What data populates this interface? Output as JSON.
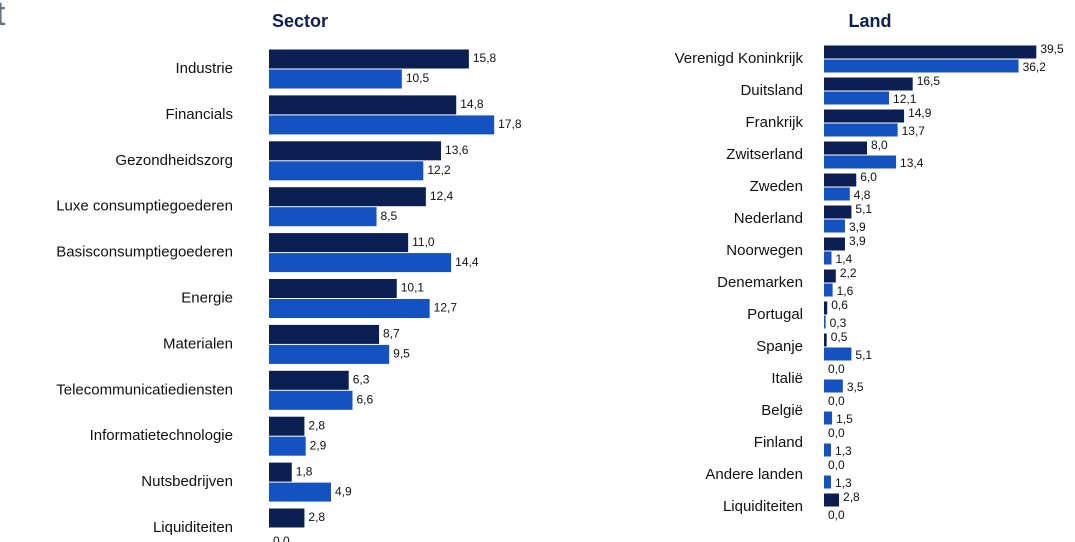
{
  "header": "t",
  "chart_data": [
    {
      "type": "bar",
      "orientation": "horizontal",
      "title": "Sector",
      "categories": [
        "Industrie",
        "Financials",
        "Gezondheidszorg",
        "Luxe consumptiegoederen",
        "Basisconsumptiegoederen",
        "Energie",
        "Materialen",
        "Telecommunicatiediensten",
        "Informatietechnologie",
        "Nutsbedrijven",
        "Liquiditeiten"
      ],
      "series": [
        {
          "color": "#0b1f52",
          "values": [
            15.8,
            14.8,
            13.6,
            12.4,
            11,
            10.1,
            8.7,
            6.3,
            2.8,
            1.8,
            2.8
          ],
          "value_labels": [
            "15,8",
            "14,8",
            "13,6",
            "12,4",
            "11,0",
            "10,1",
            "8,7",
            "6,3",
            "2,8",
            "1,8",
            "2,8"
          ]
        },
        {
          "color": "#1452c2",
          "values": [
            10.5,
            17.8,
            12.2,
            8.5,
            14.4,
            12.7,
            9.5,
            6.6,
            2.9,
            4.9,
            0
          ],
          "value_labels": [
            "10,5",
            "17,8",
            "12,2",
            "8,5",
            "14,4",
            "12,7",
            "9,5",
            "6,6",
            "2,9",
            "4,9",
            "0,0"
          ]
        }
      ],
      "xlim": [
        0,
        20
      ]
    },
    {
      "type": "bar",
      "orientation": "horizontal",
      "title": "Land",
      "categories": [
        "Verenigd Koninkrijk",
        "Duitsland",
        "Frankrijk",
        "Zwitserland",
        "Zweden",
        "Nederland",
        "Noorwegen",
        "Denemarken",
        "Portugal",
        "Spanje",
        "Italië",
        "België",
        "Finland",
        "Andere landen",
        "Liquiditeiten"
      ],
      "series": [
        {
          "color": "#0b1f52",
          "values": [
            39.5,
            16.5,
            14.9,
            8,
            6,
            5.1,
            3.9,
            2.2,
            0.6,
            0.5,
            0,
            0,
            0,
            0,
            2.8
          ],
          "value_labels": [
            "39,5",
            "16,5",
            "14,9",
            "8,0",
            "6,0",
            "5,1",
            "3,9",
            "2,2",
            "0,6",
            "0,5",
            "0,0",
            "0,0",
            "0,0",
            "0,0",
            "2,8"
          ]
        },
        {
          "color": "#1452c2",
          "values": [
            36.2,
            12.1,
            13.7,
            13.4,
            4.8,
            3.9,
            1.4,
            1.6,
            0.3,
            5.1,
            3.5,
            1.5,
            1.3,
            1.3,
            0
          ],
          "value_labels": [
            "36,2",
            "12,1",
            "13,7",
            "13,4",
            "4,8",
            "3,9",
            "1,4",
            "1,6",
            "0,3",
            "5,1",
            "3,5",
            "1,5",
            "1,3",
            "1,3",
            "0,0"
          ]
        }
      ],
      "xlim": [
        0,
        40
      ]
    }
  ]
}
